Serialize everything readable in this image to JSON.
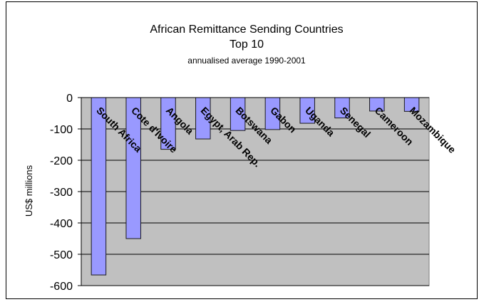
{
  "chart_data": {
    "type": "bar",
    "title": "African Remittance Sending Countries",
    "subtitle": "Top 10",
    "subtitle2": "annualised average 1990-2001",
    "ylabel": "US$ millions",
    "xlabel": "",
    "ylim": [
      -600,
      0
    ],
    "yticks": [
      "0",
      "-100",
      "-200",
      "-300",
      "-400",
      "-500",
      "-600"
    ],
    "grid": true,
    "categories": [
      "South Africa",
      "Cote d'Ivoire",
      "Angola",
      "Egypt, Arab Rep.",
      "Botswana",
      "Gabon",
      "Uganda",
      "Senegal",
      "Cameroon",
      "Mozambique"
    ],
    "values": [
      -566,
      -450,
      -165,
      -132,
      -105,
      -102,
      -82,
      -65,
      -43,
      -44
    ],
    "colors": {
      "bar": "#9999ff",
      "bar_stroke": "#1a1a1a",
      "plot_bg": "#c0c0c0",
      "grid": "#000000"
    }
  }
}
